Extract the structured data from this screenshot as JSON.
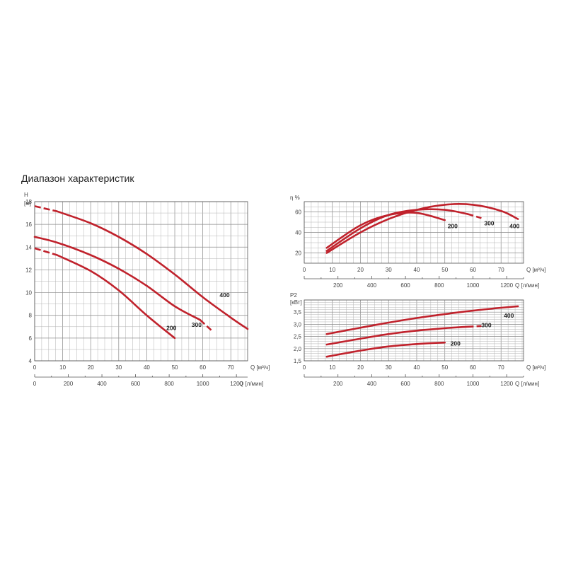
{
  "title": "Диапазон характеристик",
  "chart_data": [
    {
      "id": "head",
      "type": "line",
      "ylabel": "H",
      "yunit": "[м]",
      "xlabel": "Q [м³/ч]",
      "x2label": "Q [л/мин]",
      "xlim": [
        0,
        76
      ],
      "ylim": [
        4,
        18
      ],
      "yticks": [
        4,
        6,
        8,
        10,
        12,
        14,
        16,
        18
      ],
      "yticks_text": [
        "4",
        "6",
        "8",
        "10",
        "12",
        "14",
        "16",
        "18"
      ],
      "xticks": [
        0,
        10,
        20,
        30,
        40,
        50,
        60,
        70
      ],
      "x2ticks": [
        0,
        200,
        400,
        600,
        800,
        1000,
        1200
      ],
      "series": [
        {
          "name": "400",
          "dash_until": 8,
          "label_at": [
            66,
            9.6
          ],
          "x": [
            0,
            8,
            20,
            30,
            40,
            50,
            60,
            70,
            76
          ],
          "y": [
            17.6,
            17.15,
            16.1,
            14.9,
            13.4,
            11.6,
            9.6,
            7.8,
            6.8
          ]
        },
        {
          "name": "300",
          "dash_from": 59,
          "label_at": [
            56,
            7.0
          ],
          "x": [
            0,
            8,
            20,
            30,
            40,
            50,
            59,
            63
          ],
          "y": [
            14.9,
            14.4,
            13.3,
            12.1,
            10.6,
            8.8,
            7.6,
            6.7
          ]
        },
        {
          "name": "200",
          "dash_until": 8,
          "label_at": [
            47,
            6.7
          ],
          "x": [
            0,
            8,
            20,
            30,
            40,
            50
          ],
          "y": [
            13.9,
            13.3,
            11.9,
            10.2,
            8.0,
            6.0
          ]
        }
      ]
    },
    {
      "id": "efficiency",
      "type": "line",
      "ylabel": "η %",
      "xlabel": "Q [м³/ч]",
      "x2label": "Q [л/мин]",
      "xlim": [
        0,
        78
      ],
      "ylim": [
        10,
        70
      ],
      "yticks": [
        20,
        40,
        60
      ],
      "yticks_text": [
        "20",
        "40",
        "60"
      ],
      "xticks": [
        0,
        10,
        20,
        30,
        40,
        50,
        60,
        70
      ],
      "x2ticks": [
        200,
        400,
        600,
        800,
        1000,
        1200
      ],
      "series": [
        {
          "name": "200",
          "label_at": [
            51,
            44
          ],
          "x": [
            8,
            20,
            30,
            40,
            50
          ],
          "y": [
            25,
            47,
            57,
            59,
            52
          ]
        },
        {
          "name": "300",
          "dash_from": 58,
          "label_at": [
            64,
            47
          ],
          "x": [
            8,
            20,
            30,
            40,
            50,
            58,
            63
          ],
          "y": [
            22,
            44,
            57,
            62,
            62,
            58,
            54
          ]
        },
        {
          "name": "400",
          "label_at": [
            73,
            44
          ],
          "x": [
            8,
            20,
            30,
            40,
            50,
            60,
            70,
            76
          ],
          "y": [
            20,
            40,
            53,
            62,
            67,
            67,
            61,
            53
          ]
        }
      ]
    },
    {
      "id": "power",
      "type": "line",
      "ylabel": "P2",
      "yunit": "[кВт]",
      "xlabel": "Q [м³/ч]",
      "x2label": "Q [л/мин]",
      "xlim": [
        0,
        78
      ],
      "ylim": [
        1.5,
        4.0
      ],
      "yticks": [
        1.5,
        2.0,
        2.5,
        3.0,
        3.5
      ],
      "yticks_text": [
        "1,5",
        "2,0",
        "2,5",
        "3,0",
        "3,5"
      ],
      "xticks": [
        0,
        10,
        20,
        30,
        40,
        50,
        60,
        70
      ],
      "x2ticks": [
        200,
        400,
        600,
        800,
        1000,
        1200
      ],
      "series": [
        {
          "name": "400",
          "label_at": [
            71,
            3.28
          ],
          "x": [
            8,
            20,
            30,
            40,
            50,
            60,
            70,
            76
          ],
          "y": [
            2.6,
            2.86,
            3.07,
            3.26,
            3.42,
            3.56,
            3.68,
            3.74
          ]
        },
        {
          "name": "300",
          "dash_from": 58,
          "label_at": [
            63,
            2.88
          ],
          "x": [
            8,
            20,
            30,
            40,
            50,
            58,
            63
          ],
          "y": [
            2.17,
            2.41,
            2.6,
            2.74,
            2.84,
            2.9,
            2.93
          ]
        },
        {
          "name": "200",
          "label_at": [
            52,
            2.13
          ],
          "x": [
            8,
            20,
            30,
            40,
            50
          ],
          "y": [
            1.67,
            1.92,
            2.09,
            2.19,
            2.25
          ]
        }
      ]
    }
  ]
}
